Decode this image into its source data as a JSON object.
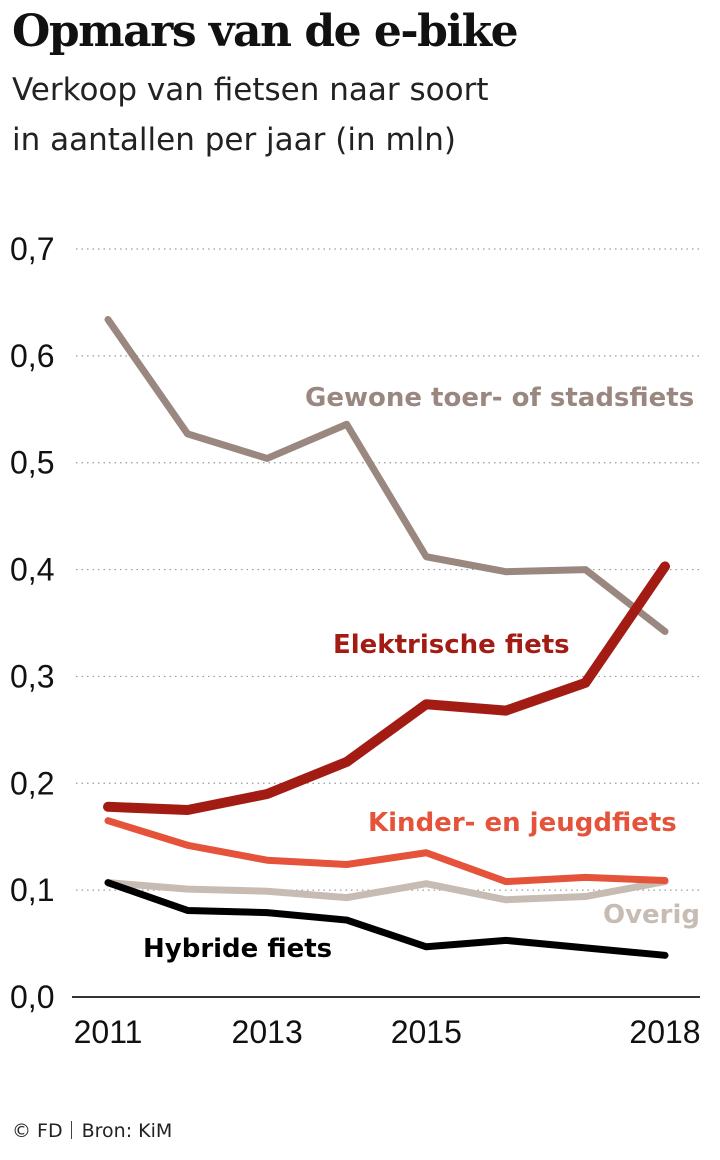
{
  "title": "Opmars van de e-bike",
  "subtitle_line1": "Verkoop van fietsen naar soort",
  "subtitle_line2": "in aantallen per jaar (in mln)",
  "footer": {
    "credit": "© FD",
    "source": "Bron: KiM"
  },
  "chart_data": {
    "type": "line",
    "ylim": [
      0,
      0.7
    ],
    "yticks": [
      0.0,
      0.1,
      0.2,
      0.3,
      0.4,
      0.5,
      0.6,
      0.7
    ],
    "ytick_labels": [
      "0,0",
      "0,1",
      "0,2",
      "0,3",
      "0,4",
      "0,5",
      "0,6",
      "0,7"
    ],
    "xticks": [
      2011,
      2013,
      2015,
      2018
    ],
    "xtick_labels": [
      "2011",
      "2013",
      "2015",
      "2018"
    ],
    "grid": true,
    "x": [
      2011,
      2012,
      2013,
      2014,
      2015,
      2016,
      2017,
      2018
    ],
    "series": [
      {
        "name": "Gewone toer- of stadsfiets",
        "color": "#9a8880",
        "values": [
          0.634,
          0.527,
          0.504,
          0.536,
          0.412,
          0.398,
          0.4,
          0.342
        ]
      },
      {
        "name": "Elektrische  fiets",
        "color": "#a31c14",
        "values": [
          0.178,
          0.175,
          0.19,
          0.22,
          0.274,
          0.268,
          0.294,
          0.403
        ]
      },
      {
        "name": "Kinder- en jeugdfiets",
        "color": "#e4533a",
        "values": [
          0.165,
          0.142,
          0.128,
          0.124,
          0.135,
          0.108,
          0.112,
          0.109
        ]
      },
      {
        "name": "Overig",
        "color": "#c7bcb3",
        "values": [
          0.107,
          0.101,
          0.099,
          0.093,
          0.106,
          0.091,
          0.094,
          0.108
        ]
      },
      {
        "name": "Hybride fiets",
        "color": "#000000",
        "values": [
          0.107,
          0.081,
          0.079,
          0.072,
          0.047,
          0.053,
          0.046,
          0.039
        ]
      }
    ]
  }
}
